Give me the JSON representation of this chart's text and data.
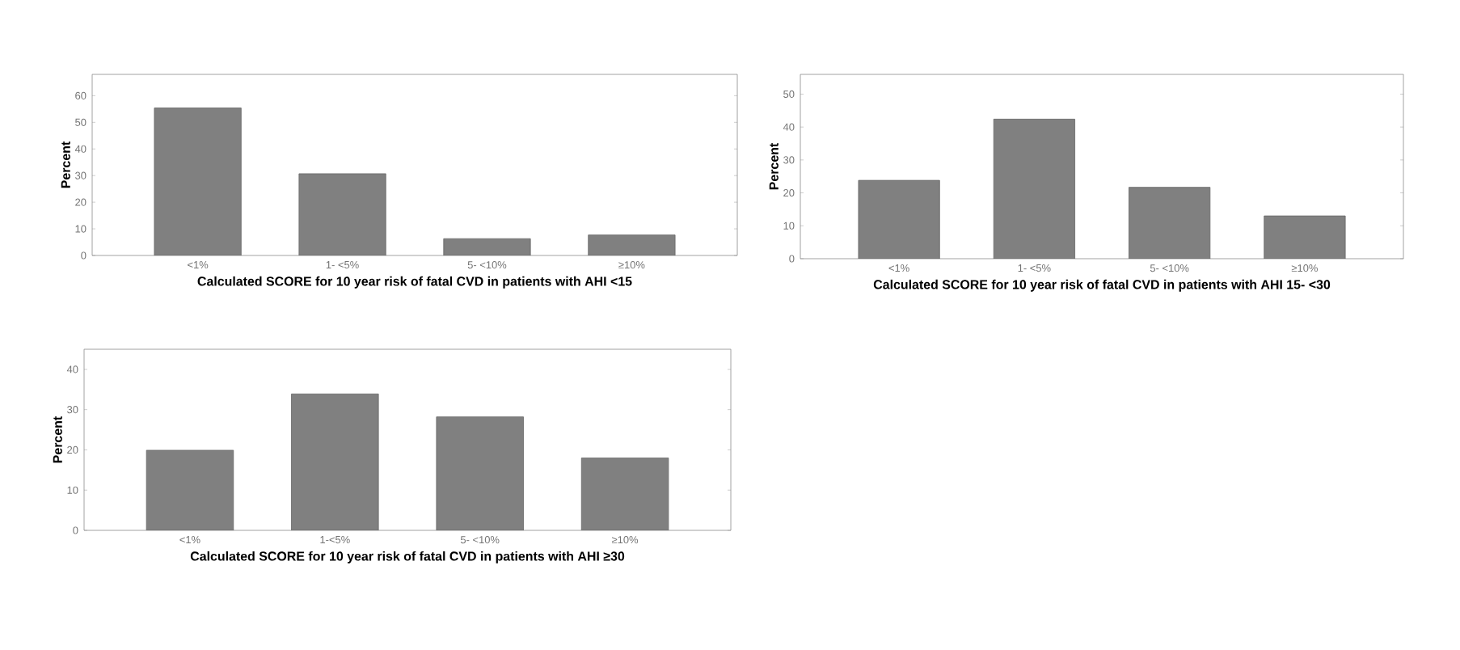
{
  "chart_data": [
    {
      "type": "bar",
      "categories": [
        "<1%",
        "1- <5%",
        "5- <10%",
        "≥10%"
      ],
      "values": [
        55.4,
        30.7,
        6.3,
        7.7
      ],
      "color": "#808080",
      "ylim": [
        0,
        68
      ],
      "yticks": [
        0,
        10,
        20,
        30,
        40,
        50,
        60
      ],
      "xlabel": "Calculated SCORE for 10 year risk of fatal CVD in patients with AHI <15",
      "ylabel": "Percent"
    },
    {
      "type": "bar",
      "categories": [
        "<1%",
        "1- <5%",
        "5- <10%",
        "≥10%"
      ],
      "values": [
        23.8,
        42.4,
        21.7,
        13
      ],
      "color": "#808080",
      "ylim": [
        0,
        56
      ],
      "yticks": [
        0,
        10,
        20,
        30,
        40,
        50
      ],
      "xlabel": "Calculated SCORE for 10 year risk of fatal CVD in patients with AHI 15- <30",
      "ylabel": "Percent"
    },
    {
      "type": "bar",
      "categories": [
        "<1%",
        "1-<5%",
        "5- <10%",
        "≥10%"
      ],
      "values": [
        19.9,
        33.9,
        28.2,
        18
      ],
      "color": "#808080",
      "ylim": [
        0,
        45
      ],
      "yticks": [
        0,
        10,
        20,
        30,
        40
      ],
      "xlabel": "Calculated SCORE for 10 year risk of fatal CVD in patients with AHI ≥30",
      "ylabel": "Percent"
    }
  ]
}
